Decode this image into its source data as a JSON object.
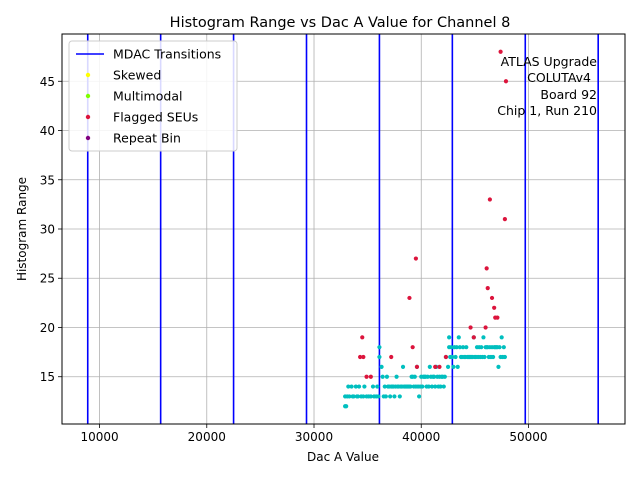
{
  "chart_data": {
    "type": "scatter",
    "title": "Histogram Range vs Dac A Value for Channel 8",
    "xlabel": "Dac A Value",
    "ylabel": "Histogram Range",
    "xlim": [
      6500,
      59000
    ],
    "ylim": [
      10.2,
      49.8
    ],
    "xticks": [
      10000,
      20000,
      30000,
      40000,
      50000
    ],
    "yticks": [
      15,
      20,
      25,
      30,
      35,
      40,
      45
    ],
    "grid": true,
    "legend_position": "top-left",
    "legend": [
      {
        "label": "MDAC Transitions",
        "marker": "line",
        "color": "#0000ff"
      },
      {
        "label": "Skewed",
        "marker": "dot",
        "color": "#ffff00"
      },
      {
        "label": "Multimodal",
        "marker": "dot",
        "color": "#7fff00"
      },
      {
        "label": "Flagged SEUs",
        "marker": "dot",
        "color": "#dc143c"
      },
      {
        "label": "Repeat Bin",
        "marker": "dot",
        "color": "#800080"
      }
    ],
    "annotation": [
      "ATLAS Upgrade",
      "COLUTAv4",
      "Board 92",
      "Chip 1, Run 210"
    ],
    "mdac_transitions": [
      8900,
      15700,
      22500,
      29300,
      36100,
      42900,
      49700,
      56500
    ],
    "series": [
      {
        "name": "Histogram Range",
        "color": "#00bfbf",
        "points": [
          [
            32900,
            12
          ],
          [
            32900,
            13
          ],
          [
            33000,
            12
          ],
          [
            33100,
            13
          ],
          [
            33200,
            14
          ],
          [
            33300,
            13
          ],
          [
            33500,
            14
          ],
          [
            33600,
            13
          ],
          [
            33700,
            13
          ],
          [
            33900,
            14
          ],
          [
            34000,
            13
          ],
          [
            34100,
            13
          ],
          [
            34200,
            14
          ],
          [
            34400,
            13
          ],
          [
            34600,
            13
          ],
          [
            34700,
            14
          ],
          [
            34900,
            13
          ],
          [
            35100,
            13
          ],
          [
            35300,
            13
          ],
          [
            35500,
            14
          ],
          [
            35600,
            13
          ],
          [
            35800,
            13
          ],
          [
            35900,
            14
          ],
          [
            36000,
            13
          ],
          [
            36100,
            17
          ],
          [
            36100,
            18
          ],
          [
            36300,
            16
          ],
          [
            36400,
            15
          ],
          [
            36500,
            13
          ],
          [
            36600,
            14
          ],
          [
            36700,
            13
          ],
          [
            36800,
            15
          ],
          [
            36900,
            14
          ],
          [
            37000,
            14
          ],
          [
            37100,
            13
          ],
          [
            37200,
            14
          ],
          [
            37300,
            14
          ],
          [
            37400,
            14
          ],
          [
            37500,
            13
          ],
          [
            37600,
            14
          ],
          [
            37700,
            15
          ],
          [
            37800,
            14
          ],
          [
            37900,
            14
          ],
          [
            38000,
            13
          ],
          [
            38100,
            14
          ],
          [
            38200,
            14
          ],
          [
            38300,
            16
          ],
          [
            38400,
            14
          ],
          [
            38500,
            14
          ],
          [
            38600,
            14
          ],
          [
            38700,
            14
          ],
          [
            38800,
            14
          ],
          [
            38900,
            14
          ],
          [
            39000,
            14
          ],
          [
            39100,
            15
          ],
          [
            39200,
            15
          ],
          [
            39300,
            14
          ],
          [
            39400,
            15
          ],
          [
            39500,
            14
          ],
          [
            39600,
            16
          ],
          [
            39700,
            14
          ],
          [
            39800,
            13
          ],
          [
            39900,
            14
          ],
          [
            40000,
            15
          ],
          [
            40100,
            14
          ],
          [
            40200,
            15
          ],
          [
            40300,
            15
          ],
          [
            40400,
            15
          ],
          [
            40500,
            14
          ],
          [
            40600,
            15
          ],
          [
            40700,
            14
          ],
          [
            40800,
            16
          ],
          [
            40900,
            15
          ],
          [
            41000,
            14
          ],
          [
            41100,
            15
          ],
          [
            41200,
            15
          ],
          [
            41300,
            14
          ],
          [
            41400,
            16
          ],
          [
            41500,
            15
          ],
          [
            41600,
            14
          ],
          [
            41700,
            15
          ],
          [
            41800,
            14
          ],
          [
            41900,
            15
          ],
          [
            42000,
            15
          ],
          [
            42100,
            14
          ],
          [
            42200,
            15
          ],
          [
            42300,
            17
          ],
          [
            42500,
            16
          ],
          [
            42600,
            19
          ],
          [
            42600,
            18
          ],
          [
            42700,
            17
          ],
          [
            42800,
            18
          ],
          [
            42900,
            17
          ],
          [
            43000,
            16
          ],
          [
            43100,
            18
          ],
          [
            43200,
            17
          ],
          [
            43300,
            18
          ],
          [
            43400,
            16
          ],
          [
            43500,
            19
          ],
          [
            43600,
            18
          ],
          [
            43700,
            17
          ],
          [
            43800,
            17
          ],
          [
            43900,
            18
          ],
          [
            44000,
            17
          ],
          [
            44100,
            17
          ],
          [
            44200,
            18
          ],
          [
            44300,
            17
          ],
          [
            44400,
            17
          ],
          [
            44500,
            17
          ],
          [
            44600,
            17
          ],
          [
            44700,
            17
          ],
          [
            44800,
            17
          ],
          [
            44900,
            19
          ],
          [
            45000,
            17
          ],
          [
            45100,
            17
          ],
          [
            45200,
            18
          ],
          [
            45300,
            17
          ],
          [
            45400,
            18
          ],
          [
            45500,
            17
          ],
          [
            45600,
            18
          ],
          [
            45700,
            17
          ],
          [
            45800,
            19
          ],
          [
            45900,
            17
          ],
          [
            46000,
            18
          ],
          [
            46100,
            18
          ],
          [
            46200,
            18
          ],
          [
            46300,
            17
          ],
          [
            46400,
            18
          ],
          [
            46500,
            17
          ],
          [
            46600,
            18
          ],
          [
            46700,
            17
          ],
          [
            46800,
            18
          ],
          [
            46900,
            18
          ],
          [
            47000,
            18
          ],
          [
            47100,
            18
          ],
          [
            47200,
            16
          ],
          [
            47300,
            18
          ],
          [
            47400,
            17
          ],
          [
            47500,
            19
          ],
          [
            47600,
            17
          ],
          [
            47700,
            18
          ],
          [
            47800,
            17
          ]
        ]
      },
      {
        "name": "Flagged SEUs",
        "color": "#dc143c",
        "points": [
          [
            34300,
            17
          ],
          [
            34500,
            19
          ],
          [
            34600,
            17
          ],
          [
            34900,
            15
          ],
          [
            35300,
            15
          ],
          [
            37200,
            17
          ],
          [
            38900,
            23
          ],
          [
            39200,
            18
          ],
          [
            39500,
            27
          ],
          [
            39600,
            16
          ],
          [
            41300,
            16
          ],
          [
            41700,
            16
          ],
          [
            42300,
            17
          ],
          [
            44600,
            20
          ],
          [
            44900,
            19
          ],
          [
            46000,
            20
          ],
          [
            46100,
            26
          ],
          [
            46200,
            24
          ],
          [
            46400,
            33
          ],
          [
            46600,
            23
          ],
          [
            46800,
            22
          ],
          [
            46900,
            21
          ],
          [
            47100,
            21
          ],
          [
            47400,
            48
          ],
          [
            47800,
            31
          ],
          [
            47900,
            45
          ]
        ]
      }
    ]
  }
}
